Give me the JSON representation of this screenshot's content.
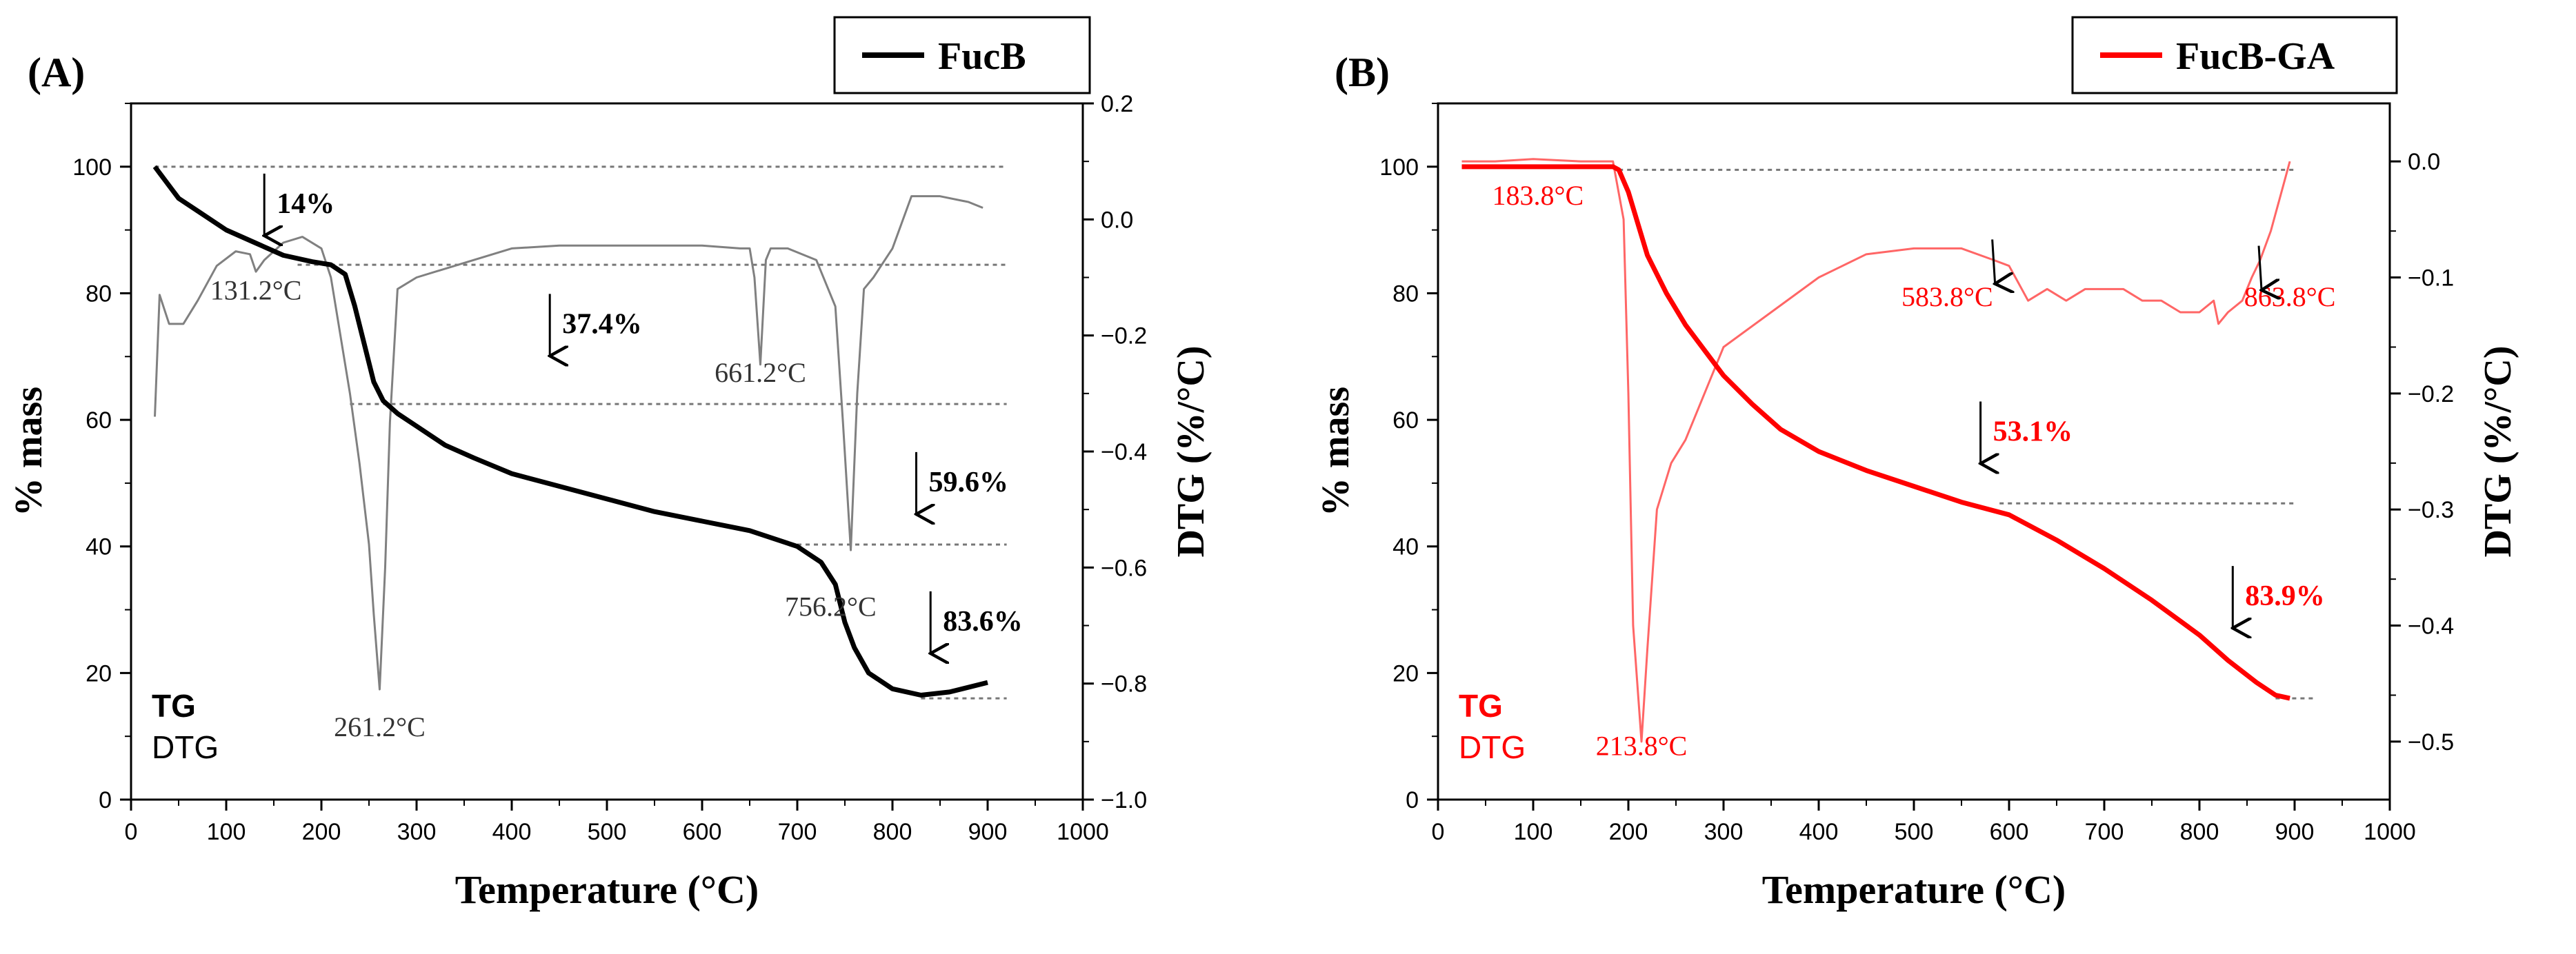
{
  "chart_data": [
    {
      "type": "line",
      "panel_label": "(A)",
      "legend_label": "FucB",
      "legend_position": "top-right",
      "color": "#000000",
      "dtg_color": "#808080",
      "xlabel": "Temperature (°C)",
      "ylabel": "% mass",
      "y2label": "DTG  (%/°C)",
      "xlim": [
        0,
        1000
      ],
      "ylim": [
        0,
        110
      ],
      "y2lim": [
        -1.0,
        0.2
      ],
      "x_ticks": [
        "0",
        "100",
        "200",
        "300",
        "400",
        "500",
        "600",
        "700",
        "800",
        "900",
        "1000"
      ],
      "y_ticks": [
        "0",
        "20",
        "40",
        "60",
        "80",
        "100"
      ],
      "y2_ticks": [
        "0.2",
        "0.0",
        "−0.2",
        "−0.4",
        "−0.6",
        "−0.8",
        "−1.0"
      ],
      "series_labels": {
        "tg": "TG",
        "dtg": "DTG"
      },
      "tg_series": {
        "name": "TG",
        "x": [
          25,
          35,
          50,
          70,
          100,
          130,
          160,
          190,
          210,
          225,
          235,
          245,
          255,
          265,
          280,
          300,
          330,
          360,
          400,
          450,
          500,
          550,
          600,
          650,
          700,
          725,
          740,
          750,
          760,
          775,
          800,
          830,
          860,
          900
        ],
        "y": [
          100,
          98,
          95,
          93,
          90,
          88,
          86,
          85,
          84.5,
          83,
          78,
          72,
          66,
          63,
          61,
          59,
          56,
          54,
          51.5,
          49.5,
          47.5,
          45.5,
          44,
          42.5,
          40,
          37.5,
          34,
          28,
          24,
          20,
          17.5,
          16.5,
          17,
          18.5
        ]
      },
      "dtg_series": {
        "name": "DTG",
        "x": [
          25,
          30,
          40,
          55,
          70,
          90,
          110,
          125,
          131.2,
          140,
          160,
          180,
          200,
          210,
          220,
          230,
          240,
          250,
          255,
          261.2,
          267,
          272,
          280,
          300,
          350,
          400,
          450,
          500,
          550,
          600,
          640,
          650,
          655,
          661.2,
          667,
          672,
          690,
          720,
          740,
          748,
          756.2,
          763,
          770,
          780,
          800,
          820,
          850,
          880,
          895
        ],
        "y": [
          -0.34,
          -0.13,
          -0.18,
          -0.18,
          -0.14,
          -0.08,
          -0.055,
          -0.06,
          -0.09,
          -0.07,
          -0.04,
          -0.03,
          -0.05,
          -0.1,
          -0.2,
          -0.3,
          -0.42,
          -0.56,
          -0.68,
          -0.81,
          -0.6,
          -0.35,
          -0.12,
          -0.1,
          -0.075,
          -0.05,
          -0.045,
          -0.045,
          -0.045,
          -0.045,
          -0.05,
          -0.05,
          -0.1,
          -0.25,
          -0.07,
          -0.05,
          -0.05,
          -0.07,
          -0.15,
          -0.35,
          -0.57,
          -0.3,
          -0.12,
          -0.1,
          -0.05,
          0.04,
          0.04,
          0.03,
          0.02
        ]
      },
      "reference_lines": [
        {
          "y": 100,
          "x": [
            25,
            920
          ]
        },
        {
          "y": 84.5,
          "x": [
            175,
            920
          ]
        },
        {
          "y": 62.5,
          "x": [
            230,
            920
          ]
        },
        {
          "y": 40.3,
          "x": [
            700,
            920
          ]
        },
        {
          "y": 16,
          "x": [
            830,
            920
          ]
        }
      ],
      "annotations": [
        {
          "text": "14%",
          "x": 140,
          "y": 94,
          "bold": true,
          "arrow": true
        },
        {
          "text": "37.4%",
          "x": 440,
          "y": 75,
          "bold": true,
          "arrow": true
        },
        {
          "text": "59.6%",
          "x": 825,
          "y": 50,
          "bold": true,
          "arrow": true
        },
        {
          "text": "83.6%",
          "x": 840,
          "y": 28,
          "bold": true,
          "arrow": true
        },
        {
          "text": "131.2°C",
          "x": 131.2,
          "y": 79,
          "bold": false,
          "arrow": false
        },
        {
          "text": "261.2°C",
          "x": 261.2,
          "y": 10,
          "bold": false,
          "arrow": false
        },
        {
          "text": "661.2°C",
          "x": 661.2,
          "y": 66,
          "bold": false,
          "arrow": false
        },
        {
          "text": "756.2°C",
          "x": 735,
          "y": 29,
          "bold": false,
          "arrow": false
        }
      ]
    },
    {
      "type": "line",
      "panel_label": "(B)",
      "legend_label": "FucB-GA",
      "legend_position": "top-right",
      "color": "#ff0000",
      "dtg_color": "#ff6666",
      "xlabel": "Temperature (°C)",
      "ylabel": "% mass",
      "y2label": "DTG  (%/°C)",
      "xlim": [
        0,
        1000
      ],
      "ylim": [
        0,
        110
      ],
      "y2lim": [
        -0.55,
        0.05
      ],
      "x_ticks": [
        "0",
        "100",
        "200",
        "300",
        "400",
        "500",
        "600",
        "700",
        "800",
        "900",
        "1000"
      ],
      "y_ticks": [
        "0",
        "20",
        "40",
        "60",
        "80",
        "100"
      ],
      "y2_ticks": [
        "0.0",
        "−0.1",
        "−0.2",
        "−0.3",
        "−0.4",
        "−0.5"
      ],
      "series_labels": {
        "tg": "TG",
        "dtg": "DTG"
      },
      "tg_series": {
        "name": "TG",
        "x": [
          25,
          100,
          183.8,
          190,
          200,
          210,
          220,
          240,
          260,
          280,
          300,
          330,
          360,
          400,
          450,
          500,
          550,
          600,
          650,
          700,
          750,
          800,
          830,
          860,
          880,
          895
        ],
        "y": [
          100,
          100,
          100,
          99.5,
          96,
          91,
          86,
          80,
          75,
          71,
          67,
          62.5,
          58.5,
          55,
          52,
          49.5,
          47,
          45,
          41,
          36.5,
          31.5,
          26,
          22,
          18.5,
          16.5,
          16
        ]
      },
      "dtg_series": {
        "name": "DTG",
        "x": [
          25,
          60,
          100,
          150,
          183.8,
          195,
          200,
          205,
          213.8,
          220,
          230,
          245,
          260,
          280,
          300,
          350,
          400,
          450,
          500,
          550,
          583.8,
          600,
          620,
          640,
          660,
          680,
          700,
          720,
          740,
          760,
          780,
          800,
          815,
          820,
          830,
          845,
          855,
          863.8,
          875,
          895
        ],
        "y": [
          0.0,
          0.0,
          0.002,
          0.0,
          0.0,
          -0.05,
          -0.2,
          -0.4,
          -0.5,
          -0.42,
          -0.3,
          -0.26,
          -0.24,
          -0.2,
          -0.16,
          -0.13,
          -0.1,
          -0.08,
          -0.075,
          -0.075,
          -0.085,
          -0.09,
          -0.12,
          -0.11,
          -0.12,
          -0.11,
          -0.11,
          -0.11,
          -0.12,
          -0.12,
          -0.13,
          -0.13,
          -0.12,
          -0.14,
          -0.13,
          -0.12,
          -0.1,
          -0.085,
          -0.06,
          0.0
        ]
      },
      "reference_lines": [
        {
          "y": 99.5,
          "x": [
            190,
            900
          ]
        },
        {
          "y": 46.8,
          "x": [
            590,
            900
          ]
        },
        {
          "y": 16,
          "x": [
            880,
            920
          ]
        }
      ],
      "annotations": [
        {
          "text": "53.1%",
          "x": 570,
          "y": 58,
          "bold": true,
          "arrow": true
        },
        {
          "text": "83.9%",
          "x": 835,
          "y": 32,
          "bold": true,
          "arrow": true
        },
        {
          "text": "183.8°C",
          "x": 105,
          "y": 94,
          "bold": false,
          "arrow": false
        },
        {
          "text": "213.8°C",
          "x": 213.8,
          "y": 7,
          "bold": false,
          "arrow": false
        },
        {
          "text": "583.8°C",
          "x": 535,
          "y": 78,
          "bold": false,
          "arrow": false
        },
        {
          "text": "863.8°C",
          "x": 895,
          "y": 78,
          "bold": false,
          "arrow": false
        }
      ]
    }
  ]
}
